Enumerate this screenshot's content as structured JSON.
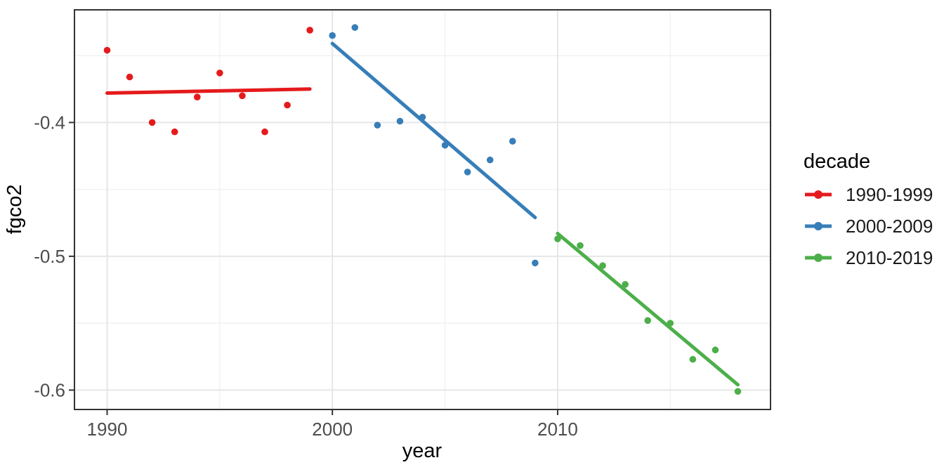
{
  "chart_data": {
    "type": "scatter",
    "title": "",
    "xlabel": "year",
    "ylabel": "fgco2",
    "x_ticks": [
      1990,
      2000,
      2010
    ],
    "x_minor_gridlines": [
      1995,
      2005,
      2015
    ],
    "y_ticks": [
      -0.4,
      -0.5,
      -0.6
    ],
    "y_minor_gridlines": [
      -0.35,
      -0.45,
      -0.55
    ],
    "xlim": [
      1988.55,
      2019.45
    ],
    "ylim": [
      -0.6145,
      -0.3158
    ],
    "grid": "on",
    "legend_position": "right",
    "legend": {
      "title": "decade"
    },
    "series": [
      {
        "name": "1990-1999",
        "color": "#E41A1C",
        "points": [
          [
            1990,
            -0.346
          ],
          [
            1991,
            -0.366
          ],
          [
            1992,
            -0.4
          ],
          [
            1993,
            -0.407
          ],
          [
            1994,
            -0.381
          ],
          [
            1995,
            -0.363
          ],
          [
            1996,
            -0.38
          ],
          [
            1997,
            -0.407
          ],
          [
            1998,
            -0.387
          ],
          [
            1999,
            -0.331
          ]
        ],
        "trend": [
          [
            1990,
            -0.378
          ],
          [
            1999,
            -0.375
          ]
        ]
      },
      {
        "name": "2000-2009",
        "color": "#377EB8",
        "points": [
          [
            2000,
            -0.335
          ],
          [
            2001,
            -0.329
          ],
          [
            2002,
            -0.402
          ],
          [
            2003,
            -0.399
          ],
          [
            2004,
            -0.396
          ],
          [
            2005,
            -0.417
          ],
          [
            2006,
            -0.437
          ],
          [
            2007,
            -0.428
          ],
          [
            2008,
            -0.414
          ],
          [
            2009,
            -0.505
          ]
        ],
        "trend": [
          [
            2000,
            -0.341
          ],
          [
            2009,
            -0.471
          ]
        ]
      },
      {
        "name": "2010-2019",
        "color": "#4DAF4A",
        "points": [
          [
            2010,
            -0.487
          ],
          [
            2011,
            -0.492
          ],
          [
            2012,
            -0.507
          ],
          [
            2013,
            -0.521
          ],
          [
            2014,
            -0.548
          ],
          [
            2015,
            -0.55
          ],
          [
            2016,
            -0.577
          ],
          [
            2017,
            -0.57
          ],
          [
            2018,
            -0.601
          ]
        ],
        "trend": [
          [
            2010,
            -0.483
          ],
          [
            2018,
            -0.596
          ]
        ]
      }
    ],
    "style_colors": {
      "grid_major": "#E6E6E6",
      "grid_minor": "#F1F1F1",
      "panel_border": "#333333",
      "tick_mark": "#333333",
      "tick_label": "#4D4D4D",
      "axis_title": "#000000",
      "background": "#FFFFFF"
    }
  }
}
